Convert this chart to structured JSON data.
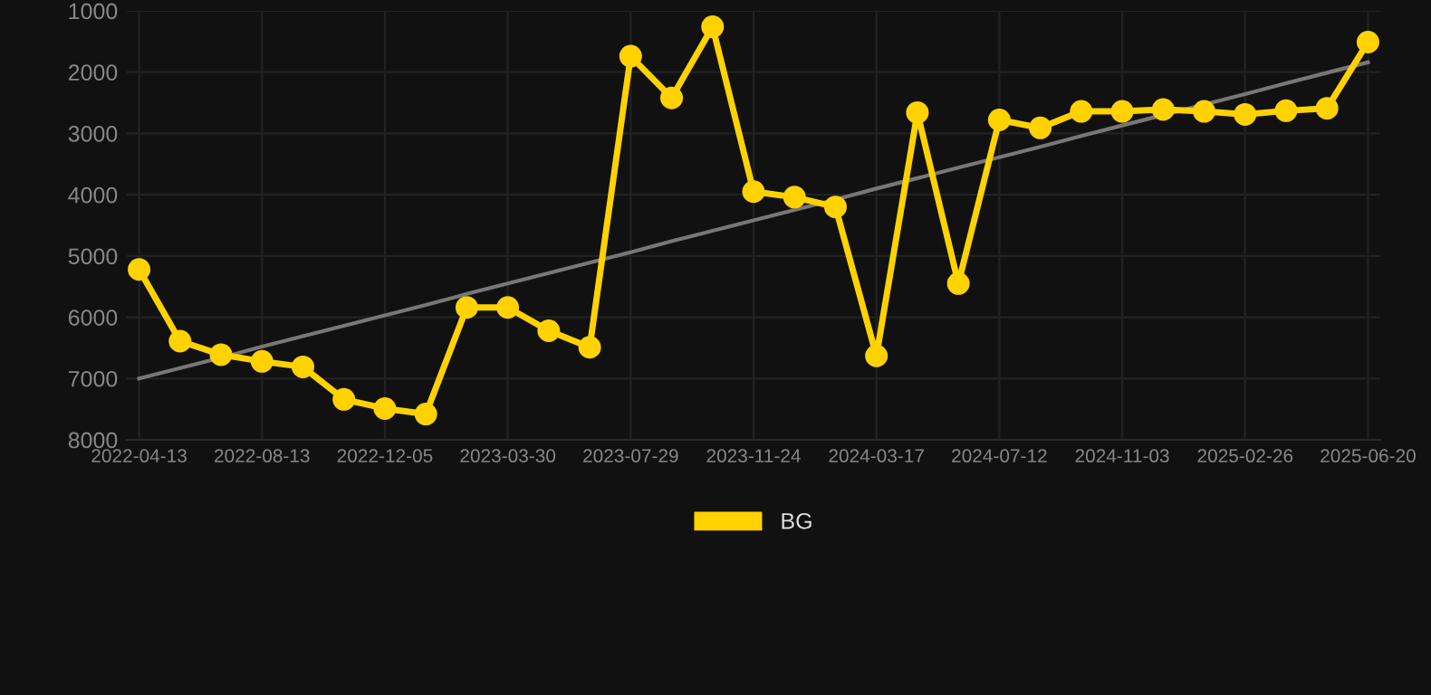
{
  "chart_data": {
    "type": "line",
    "categories": [
      "2022-04-13",
      null,
      null,
      "2022-08-13",
      null,
      null,
      "2022-12-05",
      null,
      null,
      "2023-03-30",
      null,
      null,
      "2023-07-29",
      null,
      null,
      "2023-11-24",
      null,
      null,
      "2024-03-17",
      null,
      null,
      "2024-07-12",
      null,
      null,
      "2024-11-03",
      null,
      null,
      "2025-02-26",
      null,
      null,
      "2025-06-20"
    ],
    "series": [
      {
        "name": "BG",
        "color": "#ffd200",
        "marker": "circle",
        "values": [
          5220,
          6390,
          6610,
          6720,
          6810,
          7340,
          7490,
          7580,
          5840,
          5840,
          6220,
          6490,
          1740,
          2420,
          1260,
          3950,
          4040,
          4200,
          6630,
          2660,
          5450,
          2780,
          2910,
          2640,
          2640,
          2610,
          2640,
          2690,
          2630,
          2590,
          1510
        ]
      },
      {
        "type": "line",
        "color": "#777777",
        "marker": "none",
        "values": [
          7000,
          6830,
          6660,
          6480,
          6310,
          6140,
          5970,
          5800,
          5620,
          5450,
          5280,
          5110,
          4940,
          4760,
          4590,
          4420,
          4250,
          4080,
          3900,
          3730,
          3560,
          3390,
          3220,
          3040,
          2870,
          2700,
          2530,
          2360,
          2180,
          2010,
          1840
        ]
      }
    ],
    "ylim": [
      8000,
      1000
    ],
    "yticks": [
      1000,
      2000,
      3000,
      4000,
      5000,
      6000,
      7000,
      8000
    ],
    "grid": true,
    "legend": "bottom"
  }
}
